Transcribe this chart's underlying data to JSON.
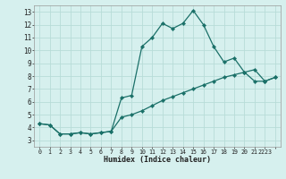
{
  "xlabel": "Humidex (Indice chaleur)",
  "background_color": "#d6f0ee",
  "grid_color": "#b8dcd8",
  "line_color": "#1a7068",
  "xlim": [
    -0.5,
    23.5
  ],
  "ylim": [
    2.5,
    13.5
  ],
  "yticks": [
    3,
    4,
    5,
    6,
    7,
    8,
    9,
    10,
    11,
    12,
    13
  ],
  "xtick_positions": [
    0,
    1,
    2,
    3,
    4,
    5,
    6,
    7,
    8,
    9,
    10,
    11,
    12,
    13,
    14,
    15,
    16,
    17,
    18,
    19,
    20,
    21,
    22,
    23
  ],
  "xtick_labels": [
    "0",
    "1",
    "2",
    "3",
    "4",
    "5",
    "6",
    "7",
    "8",
    "9",
    "10",
    "11",
    "12",
    "13",
    "14",
    "15",
    "16",
    "17",
    "18",
    "19",
    "20",
    "21",
    "2223",
    ""
  ],
  "line1_x": [
    0,
    1,
    2,
    3,
    4,
    5,
    6,
    7,
    8,
    9,
    10,
    11,
    12,
    13,
    14,
    15,
    16,
    17,
    18,
    19,
    20,
    21,
    22,
    23
  ],
  "line1_y": [
    4.3,
    4.2,
    3.5,
    3.5,
    3.6,
    3.5,
    3.6,
    3.7,
    6.3,
    6.5,
    10.3,
    11.0,
    12.1,
    11.7,
    12.1,
    13.1,
    12.0,
    10.3,
    9.1,
    9.4,
    8.3,
    7.6,
    7.6,
    7.9
  ],
  "line2_x": [
    0,
    1,
    2,
    3,
    4,
    5,
    6,
    7,
    8,
    9,
    10,
    11,
    12,
    13,
    14,
    15,
    16,
    17,
    18,
    19,
    20,
    21,
    22,
    23
  ],
  "line2_y": [
    4.3,
    4.2,
    3.5,
    3.5,
    3.6,
    3.5,
    3.6,
    3.7,
    4.8,
    5.0,
    5.3,
    5.7,
    6.1,
    6.4,
    6.7,
    7.0,
    7.3,
    7.6,
    7.9,
    8.1,
    8.3,
    8.5,
    7.6,
    7.9
  ]
}
